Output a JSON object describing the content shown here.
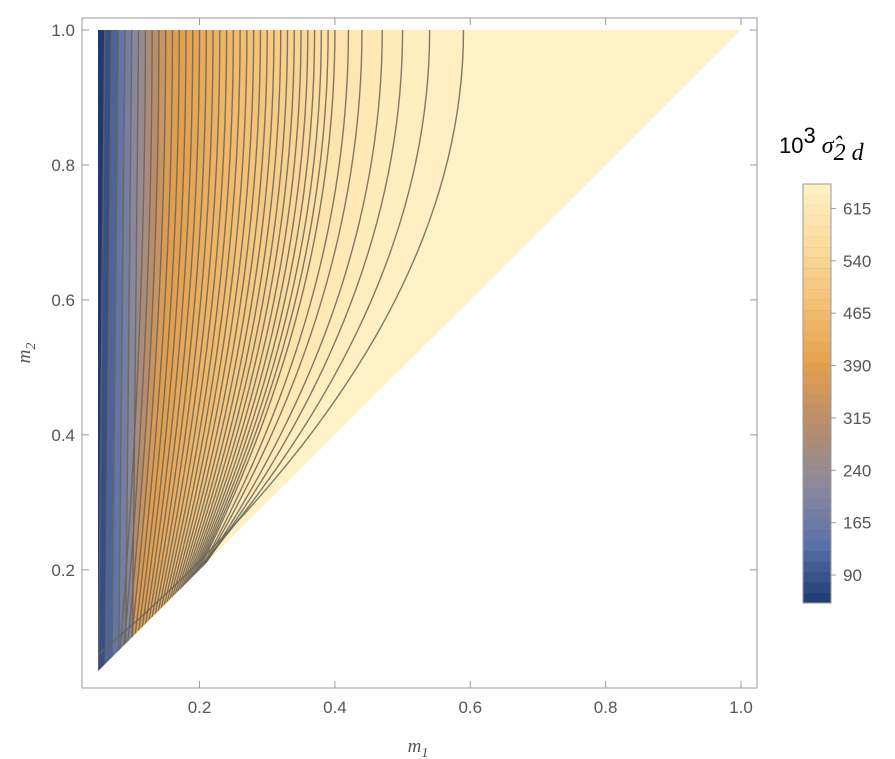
{
  "chart_data": {
    "type": "contour",
    "xlabel": {
      "base": "m",
      "sub": "1"
    },
    "ylabel": {
      "base": "m",
      "sub": "2"
    },
    "xlim": [
      0.05,
      1.0
    ],
    "ylim": [
      0.05,
      1.0
    ],
    "x_ticks": [
      0.2,
      0.4,
      0.6,
      0.8,
      1.0
    ],
    "x_tick_labels": [
      "0.2",
      "0.4",
      "0.6",
      "0.8",
      "1.0"
    ],
    "y_ticks": [
      0.2,
      0.4,
      0.6,
      0.8,
      1.0
    ],
    "y_tick_labels": [
      "0.2",
      "0.4",
      "0.6",
      "0.8",
      "1.0"
    ],
    "domain": "m1 <= m2",
    "contour_levels_x_at_top": [
      0.06,
      0.07,
      0.08,
      0.09,
      0.1,
      0.11,
      0.12,
      0.13,
      0.14,
      0.15,
      0.16,
      0.17,
      0.18,
      0.19,
      0.2,
      0.21,
      0.22,
      0.23,
      0.24,
      0.25,
      0.26,
      0.27,
      0.28,
      0.29,
      0.3,
      0.31,
      0.32,
      0.33,
      0.34,
      0.35,
      0.36,
      0.37,
      0.38,
      0.39,
      0.4,
      0.42,
      0.44,
      0.47,
      0.5,
      0.54,
      0.59
    ],
    "colorbar": {
      "title_prefix": "10",
      "title_exp": "3",
      "title_symbol": "σ̂",
      "title_sub": "2 d",
      "range": [
        50,
        650
      ],
      "ticks": [
        90,
        165,
        240,
        315,
        390,
        465,
        540,
        615
      ],
      "tick_labels": [
        "90",
        "165",
        "240",
        "315",
        "390",
        "465",
        "540",
        "615"
      ],
      "colors": [
        "#1f3a72",
        "#5b72a8",
        "#8d8a9c",
        "#b98d6b",
        "#e3a04e",
        "#f3c074",
        "#fbdc9e",
        "#fff1c6"
      ]
    }
  }
}
